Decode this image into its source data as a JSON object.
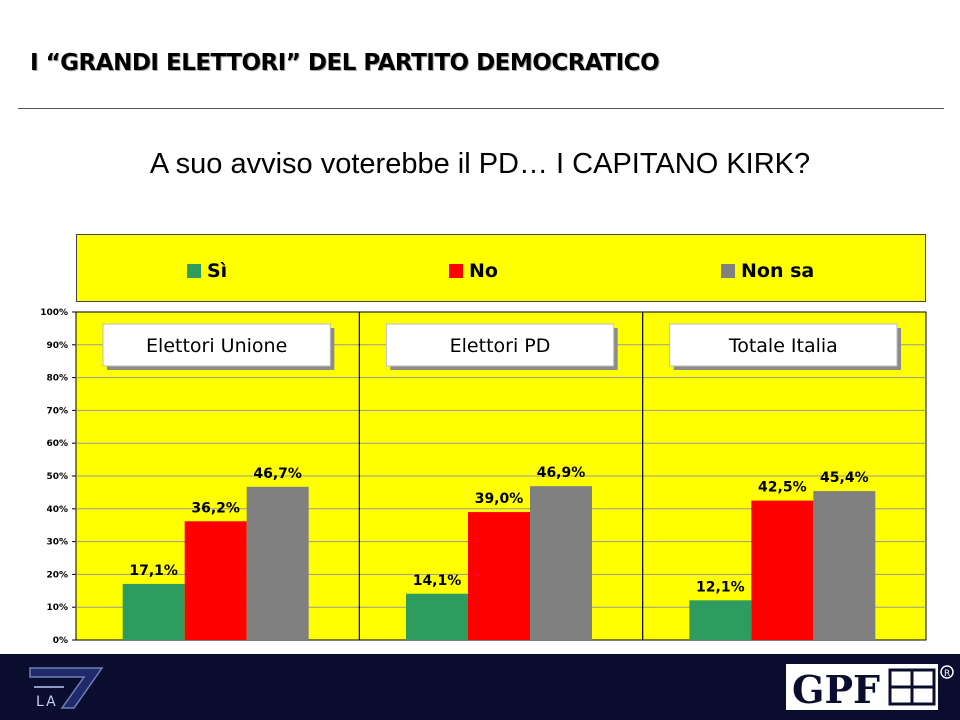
{
  "header": {
    "title": "I “GRANDI ELETTORI” DEL PARTITO DEMOCRATICO",
    "question": "A suo avviso voterebbe il PD… I CAPITANO KIRK?"
  },
  "legend": [
    {
      "label": "Sì",
      "color": "#2e9c5e"
    },
    {
      "label": "No",
      "color": "#ff0000"
    },
    {
      "label": "Non sa",
      "color": "#808080"
    }
  ],
  "chart_data": {
    "type": "bar",
    "categories": [
      "Elettori Unione",
      "Elettori PD",
      "Totale Italia"
    ],
    "series": [
      {
        "name": "Sì",
        "values": [
          17.1,
          14.1,
          12.1
        ],
        "labels": [
          "17,1%",
          "14,1%",
          "12,1%"
        ],
        "color": "#2e9c5e"
      },
      {
        "name": "No",
        "values": [
          36.2,
          39.0,
          42.5
        ],
        "labels": [
          "36,2%",
          "39,0%",
          "42,5%"
        ],
        "color": "#ff0000"
      },
      {
        "name": "Non sa",
        "values": [
          46.7,
          46.9,
          45.4
        ],
        "labels": [
          "46,7%",
          "46,9%",
          "45,4%"
        ],
        "color": "#808080"
      }
    ],
    "ylim": [
      0,
      100
    ],
    "yticks": [
      "0%",
      "10%",
      "20%",
      "30%",
      "40%",
      "50%",
      "60%",
      "70%",
      "80%",
      "90%",
      "100%"
    ],
    "grid": true,
    "background": "#ffff00",
    "legend_position": "top"
  },
  "footer": {
    "left_logo": "LA 7",
    "right_logo": "GPF",
    "background": "#0b0d2e"
  }
}
